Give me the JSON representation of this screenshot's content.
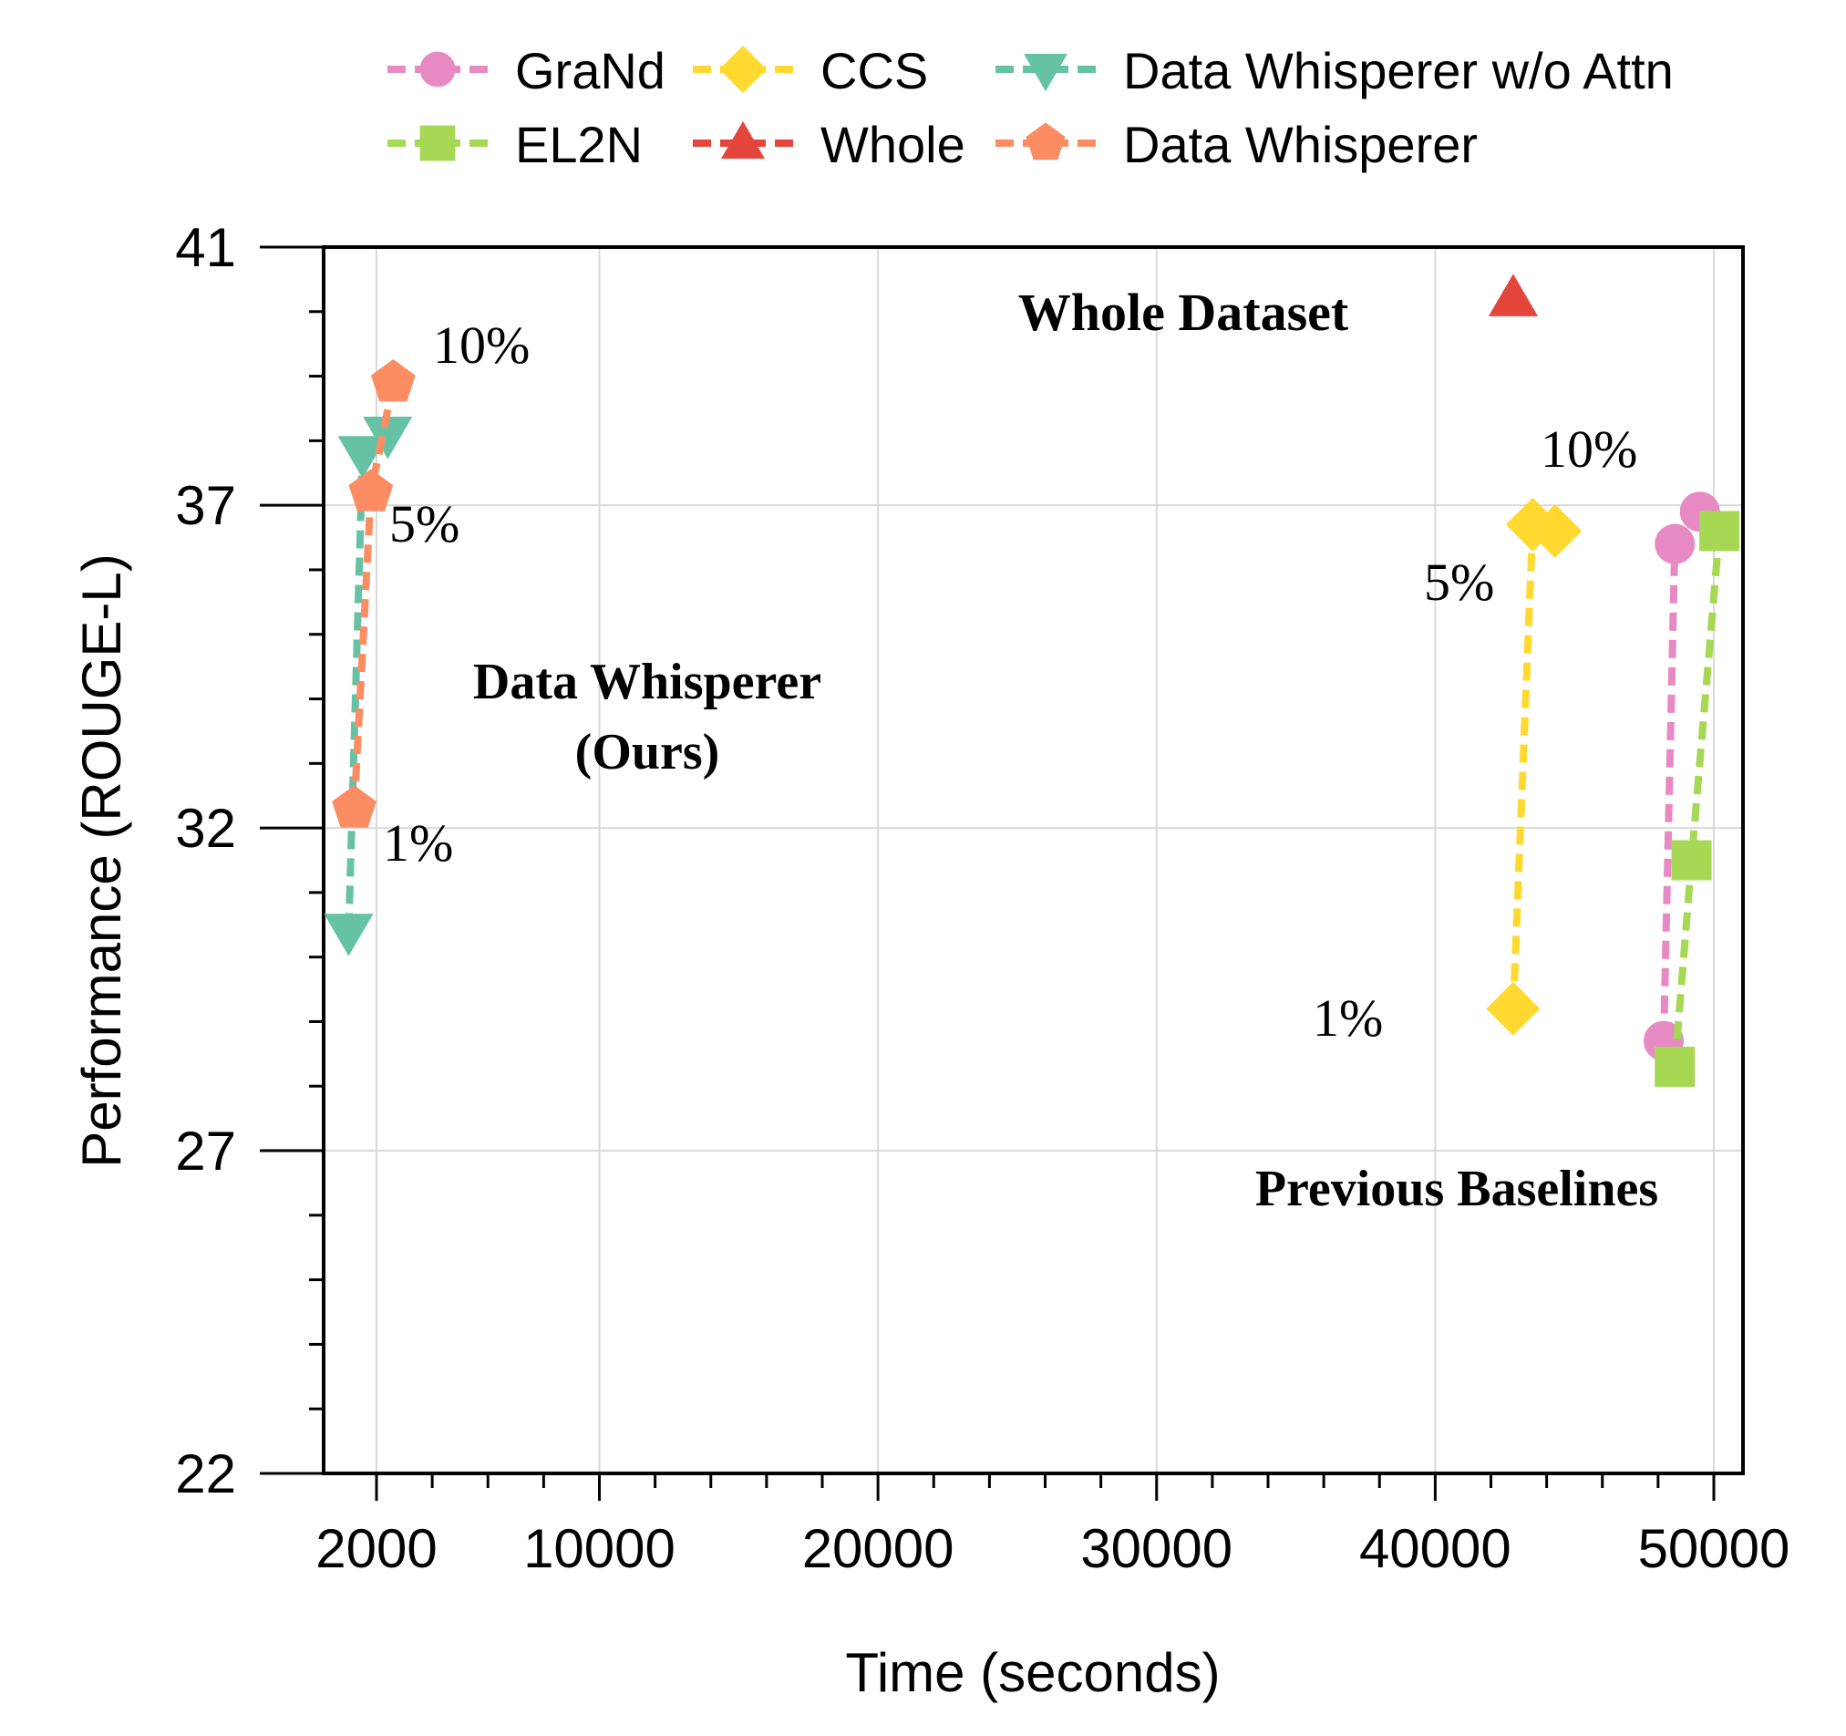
{
  "chart_data": {
    "type": "line",
    "xlabel": "Time (seconds)",
    "ylabel": "Performance (ROUGE-L)",
    "xlim": [
      0,
      51000
    ],
    "ylim": [
      22,
      41
    ],
    "xticks": [
      2000,
      10000,
      20000,
      30000,
      40000,
      50000
    ],
    "xtick_labels": [
      "2000",
      "10000",
      "20000",
      "30000",
      "40000",
      "50000"
    ],
    "yticks": [
      22,
      27,
      32,
      37,
      41
    ],
    "ytick_labels": [
      "22",
      "27",
      "32",
      "37",
      "41"
    ],
    "grid": true,
    "legend_position": "top",
    "series": [
      {
        "name": "GraNd",
        "color": "#e78ac3",
        "marker": "circle",
        "x": [
          48200,
          48600,
          49500
        ],
        "y": [
          28.7,
          36.4,
          36.9
        ]
      },
      {
        "name": "EL2N",
        "color": "#a6d854",
        "marker": "square",
        "x": [
          48600,
          49200,
          50200
        ],
        "y": [
          28.3,
          31.5,
          36.6
        ]
      },
      {
        "name": "CCS",
        "color": "#ffd92f",
        "marker": "diamond",
        "x": [
          42800,
          43500,
          44300
        ],
        "y": [
          29.2,
          36.7,
          36.6
        ]
      },
      {
        "name": "Whole",
        "color": "#e5463b",
        "marker": "triangle-up",
        "x": [
          42800
        ],
        "y": [
          40.2
        ]
      },
      {
        "name": "Data Whisperer w/o Attn",
        "color": "#66c2a5",
        "marker": "triangle-down",
        "x": [
          1000,
          1500,
          2400
        ],
        "y": [
          30.4,
          37.8,
          38.1
        ]
      },
      {
        "name": "Data Whisperer",
        "color": "#fc8d62",
        "marker": "pentagon",
        "x": [
          1200,
          1800,
          2600
        ],
        "y": [
          32.3,
          37.2,
          38.9
        ]
      }
    ],
    "annotations": {
      "whole_dataset": "Whole Dataset",
      "ours_line1": "Data Whisperer",
      "ours_line2": "(Ours)",
      "baselines": "Previous Baselines",
      "dw_10": "10%",
      "dw_5": "5%",
      "dw_1": "1%",
      "ccs_10": "10%",
      "ccs_5": "5%",
      "ccs_1": "1%"
    }
  }
}
